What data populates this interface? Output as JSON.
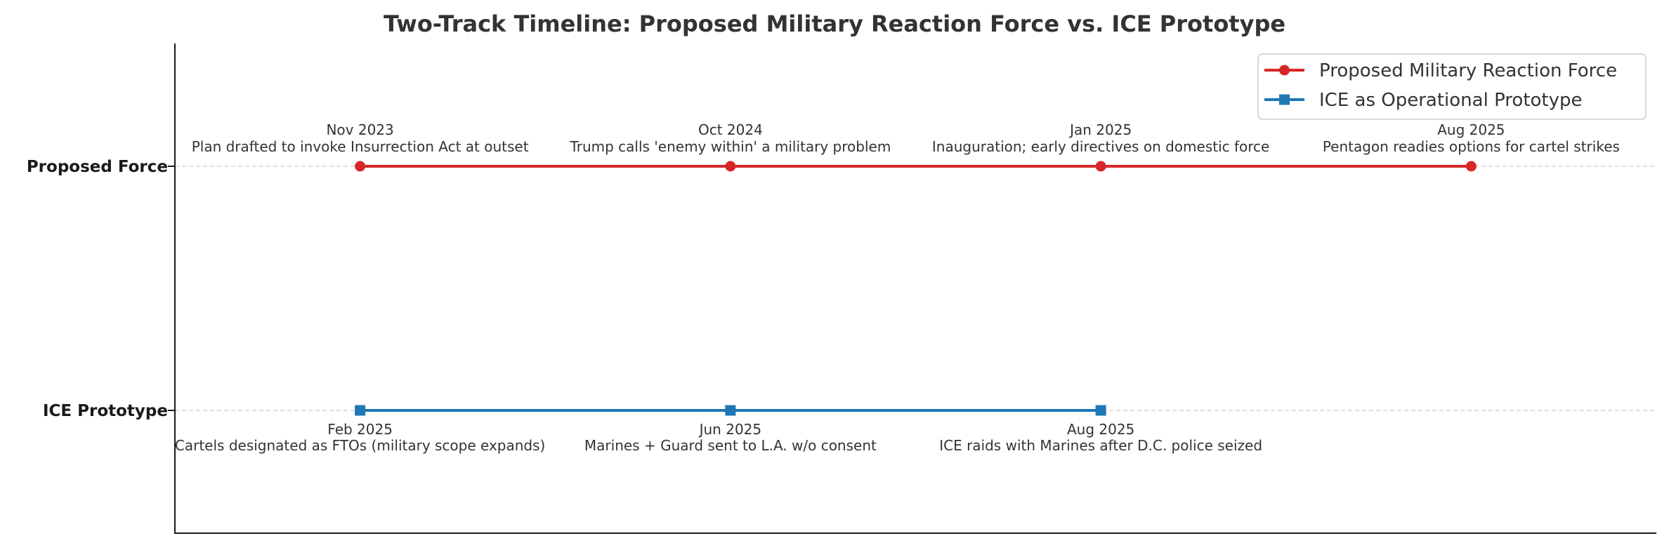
{
  "chart_data": {
    "type": "timeline",
    "title": "Two-Track Timeline: Proposed Military Reaction Force vs. ICE Prototype",
    "xlim": [
      -0.5,
      3.5
    ],
    "tracks": [
      {
        "name": "Proposed Force",
        "legend": "Proposed Military Reaction Force",
        "color": "#d62728",
        "marker": "circle",
        "label_side": "above",
        "events": [
          {
            "x": 0,
            "date": "Nov 2023",
            "desc": "Plan drafted to invoke Insurrection Act at outset"
          },
          {
            "x": 1,
            "date": "Oct 2024",
            "desc": "Trump calls 'enemy within' a military problem"
          },
          {
            "x": 2,
            "date": "Jan 2025",
            "desc": "Inauguration; early directives on domestic force"
          },
          {
            "x": 3,
            "date": "Aug 2025",
            "desc": "Pentagon readies options for cartel strikes"
          }
        ]
      },
      {
        "name": "ICE Prototype",
        "legend": "ICE as Operational Prototype",
        "color": "#1f77b4",
        "marker": "square",
        "label_side": "below",
        "events": [
          {
            "x": 0,
            "date": "Feb 2025",
            "desc": "Cartels designated as FTOs (military scope expands)"
          },
          {
            "x": 1,
            "date": "Jun 2025",
            "desc": "Marines + Guard sent to L.A. w/o consent"
          },
          {
            "x": 2,
            "date": "Aug 2025",
            "desc": "ICE raids with Marines after D.C. police seized"
          }
        ]
      }
    ],
    "legend_position": "top-right",
    "grid": "horizontal dashed"
  }
}
